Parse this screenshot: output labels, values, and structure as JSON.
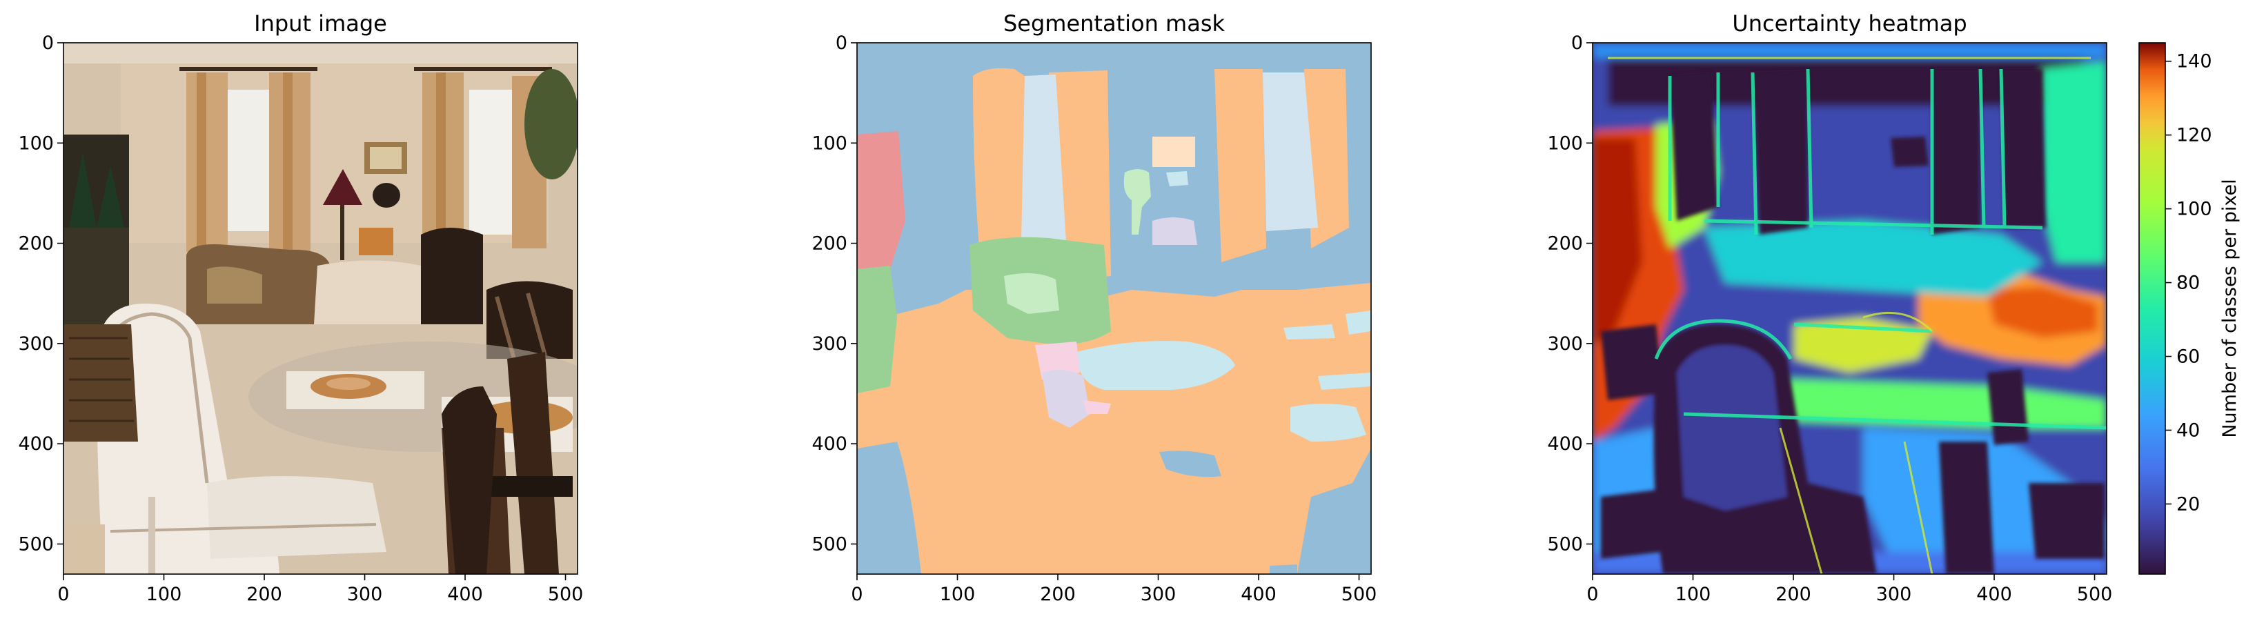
{
  "chart_data": [
    {
      "type": "image",
      "title": "Input image",
      "xlim": [
        0,
        512
      ],
      "ylim": [
        530,
        0
      ],
      "xticks": [
        0,
        100,
        200,
        300,
        400,
        500
      ],
      "yticks": [
        0,
        100,
        200,
        300,
        400,
        500
      ],
      "grid": false
    },
    {
      "type": "image",
      "title": "Segmentation mask",
      "xlim": [
        0,
        512
      ],
      "ylim": [
        530,
        0
      ],
      "xticks": [
        0,
        100,
        200,
        300,
        400,
        500
      ],
      "yticks": [
        0,
        100,
        200,
        300,
        400,
        500
      ],
      "grid": false
    },
    {
      "type": "heatmap",
      "title": "Uncertainty heatmap",
      "xlim": [
        0,
        512
      ],
      "ylim": [
        530,
        0
      ],
      "xticks": [
        0,
        100,
        200,
        300,
        400,
        500
      ],
      "yticks": [
        0,
        100,
        200,
        300,
        400,
        500
      ],
      "grid": false,
      "colorbar": {
        "label": "Number of classes per pixel",
        "range": [
          1,
          145
        ],
        "ticks": [
          20,
          40,
          60,
          80,
          100,
          120,
          140
        ],
        "colormap": "turbo"
      }
    }
  ],
  "colors": {
    "mask": {
      "wall": "#93bcd9",
      "floor_furniture": "#fdbe86",
      "curtain": "#d3e4f1",
      "painting": "#ea9495",
      "plant": "#98d193",
      "light_green": "#c6ecc4",
      "light_cyan": "#c8e7ef",
      "lavender": "#dcd6ea",
      "pink": "#f7d2e3",
      "peach": "#fee0c2"
    }
  }
}
